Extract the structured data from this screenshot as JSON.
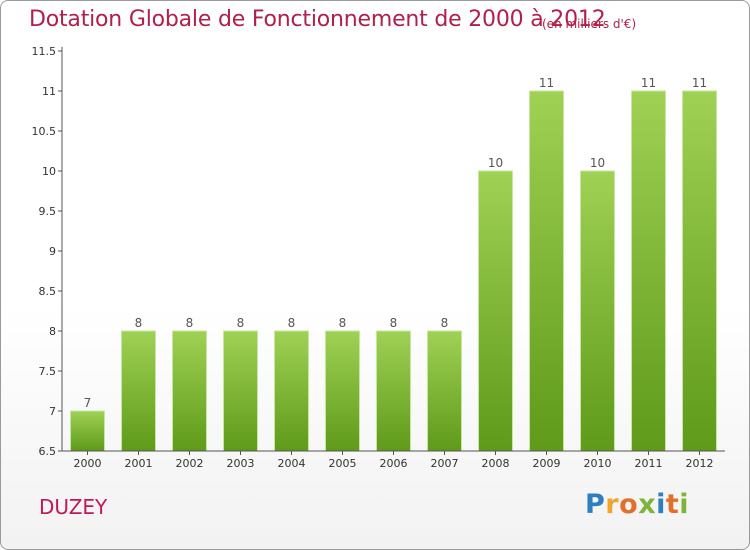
{
  "header": {
    "title": "Dotation Globale de Fonctionnement de 2000 à 2012",
    "subtitle": "(en milliers d'€)"
  },
  "commune": "DUZEY",
  "logo": {
    "letters": [
      "P",
      "r",
      "o",
      "x",
      "i",
      "t",
      "i"
    ],
    "colors": [
      "#2d7fc1",
      "#f0a52c",
      "#e0702a",
      "#7fb33a",
      "#2d7fc1",
      "#e0702a",
      "#7fb33a"
    ]
  },
  "chart_data": {
    "type": "bar",
    "title": "Dotation Globale de Fonctionnement de 2000 à 2012",
    "subtitle": "(en milliers d'€)",
    "categories": [
      "2000",
      "2001",
      "2002",
      "2003",
      "2004",
      "2005",
      "2006",
      "2007",
      "2008",
      "2009",
      "2010",
      "2011",
      "2012"
    ],
    "values": [
      7,
      8,
      8,
      8,
      8,
      8,
      8,
      8,
      10,
      11,
      10,
      11,
      11
    ],
    "value_labels": [
      "7",
      "8",
      "8",
      "8",
      "8",
      "8",
      "8",
      "8",
      "10",
      "11",
      "10",
      "11",
      "11"
    ],
    "ylim": [
      6.5,
      11.5
    ],
    "yticks": [
      6.5,
      7,
      7.5,
      8,
      8.5,
      9,
      9.5,
      10,
      10.5,
      11,
      11.5
    ],
    "ytick_labels": [
      "6.5",
      "7",
      "7.5",
      "8",
      "8.5",
      "9",
      "9.5",
      "10",
      "10.5",
      "11",
      "11.5"
    ],
    "grid": false,
    "bar_color_top": "#9fd155",
    "bar_color_bottom": "#5f9a1a"
  }
}
